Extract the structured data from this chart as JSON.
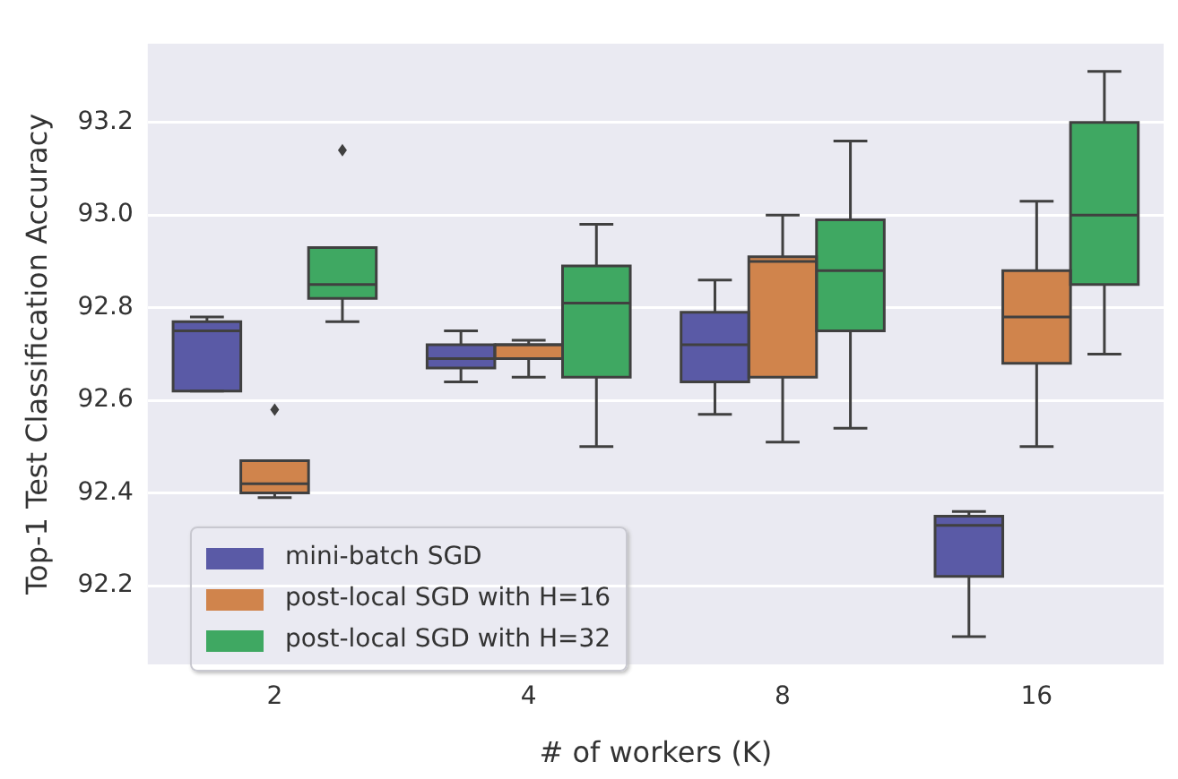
{
  "chart_data": {
    "type": "box",
    "xlabel": "# of workers (K)",
    "ylabel": "Top-1 Test Classification Accuracy",
    "categories": [
      "2",
      "4",
      "8",
      "16"
    ],
    "ylim": [
      92.03,
      93.37
    ],
    "yticks": [
      92.2,
      92.4,
      92.6,
      92.8,
      {
        "value": 93.0,
        "label": "93.0"
      },
      93.2
    ],
    "grid": "y",
    "legend": "bottom left",
    "series": [
      {
        "name": "mini-batch SGD",
        "color": "#5a5aa6",
        "boxes": [
          {
            "low": 92.62,
            "q1": 92.62,
            "median": 92.75,
            "q3": 92.77,
            "high": 92.78
          },
          {
            "low": 92.64,
            "q1": 92.67,
            "median": 92.69,
            "q3": 92.72,
            "high": 92.75
          },
          {
            "low": 92.57,
            "q1": 92.64,
            "median": 92.72,
            "q3": 92.79,
            "high": 92.86
          },
          {
            "low": 92.09,
            "q1": 92.22,
            "median": 92.33,
            "q3": 92.35,
            "high": 92.36
          }
        ]
      },
      {
        "name": "post-local SGD with H=16",
        "color": "#d0844c",
        "boxes": [
          {
            "low": 92.39,
            "q1": 92.4,
            "median": 92.42,
            "q3": 92.47,
            "high": 92.47,
            "outliers": [
              92.58
            ]
          },
          {
            "low": 92.65,
            "q1": 92.69,
            "median": 92.72,
            "q3": 92.72,
            "high": 92.73
          },
          {
            "low": 92.51,
            "q1": 92.65,
            "median": 92.9,
            "q3": 92.91,
            "high": 93.0
          },
          {
            "low": 92.5,
            "q1": 92.68,
            "median": 92.78,
            "q3": 92.88,
            "high": 93.03
          }
        ]
      },
      {
        "name": "post-local SGD with H=32",
        "color": "#3fa862",
        "boxes": [
          {
            "low": 92.77,
            "q1": 92.82,
            "median": 92.85,
            "q3": 92.93,
            "high": 92.93,
            "outliers": [
              93.14
            ]
          },
          {
            "low": 92.5,
            "q1": 92.65,
            "median": 92.81,
            "q3": 92.89,
            "high": 92.98
          },
          {
            "low": 92.54,
            "q1": 92.75,
            "median": 92.88,
            "q3": 92.99,
            "high": 93.16
          },
          {
            "low": 92.7,
            "q1": 92.85,
            "median": 93.0,
            "q3": 93.2,
            "high": 93.31
          }
        ]
      }
    ]
  }
}
